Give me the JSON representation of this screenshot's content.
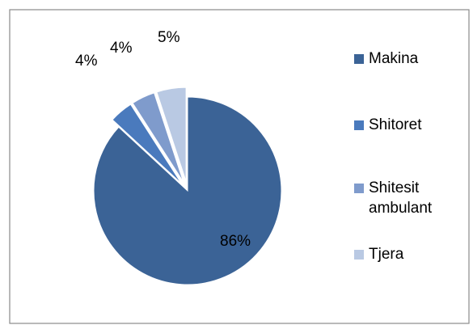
{
  "chart_data": {
    "type": "pie",
    "title": "",
    "categories": [
      "Makina",
      "Shitoret",
      "Shitesit ambulant",
      "Tjera"
    ],
    "values": [
      86,
      4,
      4,
      5
    ],
    "data_labels": [
      "86%",
      "4%",
      "4%",
      "5%"
    ],
    "colors": [
      "#3b6396",
      "#4a7abd",
      "#7f9bcc",
      "#b9c9e3"
    ],
    "exploded": [
      false,
      true,
      true,
      true
    ],
    "legend_position": "right"
  }
}
